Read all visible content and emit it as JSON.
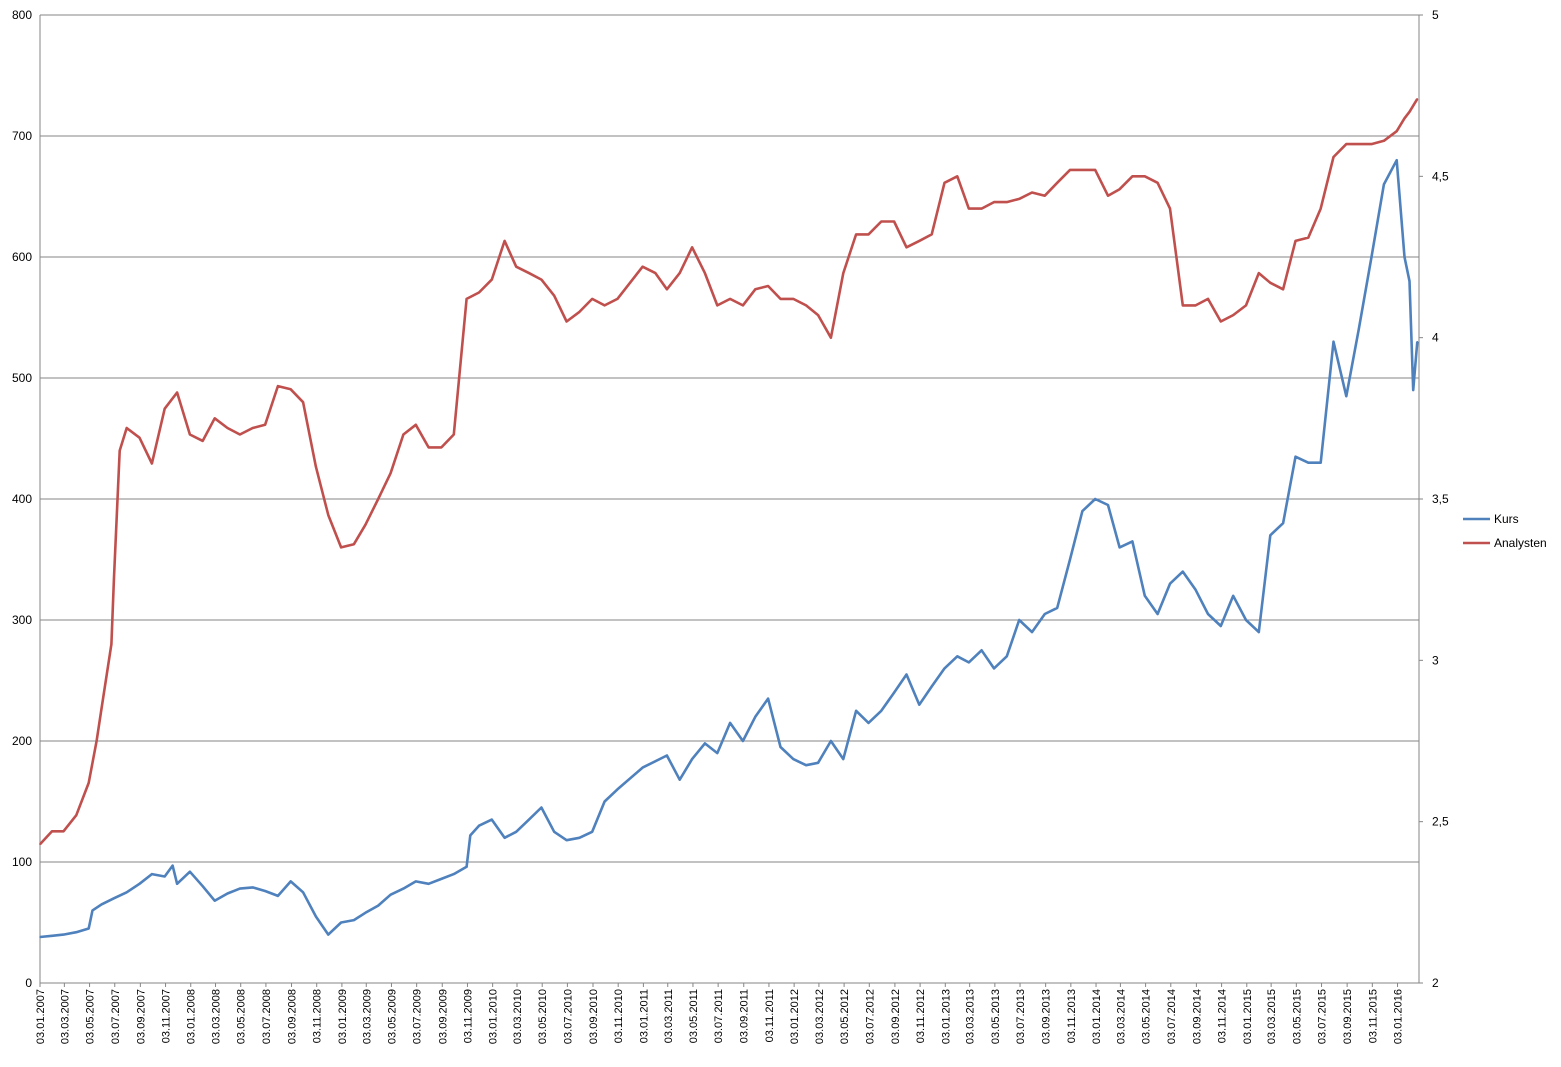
{
  "chart_data": {
    "type": "line",
    "title": "",
    "xlabel": "",
    "ylabel": "",
    "y2label": "",
    "grid": true,
    "legend_position": "right",
    "x_ticks": [
      "03.01.2007",
      "03.03.2007",
      "03.05.2007",
      "03.07.2007",
      "03.09.2007",
      "03.11.2007",
      "03.01.2008",
      "03.03.2008",
      "03.05.2008",
      "03.07.2008",
      "03.09.2008",
      "03.11.2008",
      "03.01.2009",
      "03.03.2009",
      "03.05.2009",
      "03.07.2009",
      "03.09.2009",
      "03.11.2009",
      "03.01.2010",
      "03.03.2010",
      "03.05.2010",
      "03.07.2010",
      "03.09.2010",
      "03.11.2010",
      "03.01.2011",
      "03.03.2011",
      "03.05.2011",
      "03.07.2011",
      "03.09.2011",
      "03.11.2011",
      "03.01.2012",
      "03.03.2012",
      "03.05.2012",
      "03.07.2012",
      "03.09.2012",
      "03.11.2012",
      "03.01.2013",
      "03.03.2013",
      "03.05.2013",
      "03.07.2013",
      "03.09.2013",
      "03.11.2013",
      "03.01.2014",
      "03.03.2014",
      "03.05.2014",
      "03.07.2014",
      "03.09.2014",
      "03.11.2014",
      "03.01.2015",
      "03.03.2015",
      "03.05.2015",
      "03.07.2015",
      "03.09.2015",
      "03.11.2015",
      "03.01.2016"
    ],
    "y_left": {
      "min": 0,
      "max": 800,
      "ticks": [
        "0",
        "100",
        "200",
        "300",
        "400",
        "500",
        "600",
        "700",
        "800"
      ]
    },
    "y_right": {
      "min": 2,
      "max": 5,
      "ticks": [
        "2",
        "2,5",
        "3",
        "3,5",
        "4",
        "4,5",
        "5"
      ]
    },
    "series": [
      {
        "name": "Kurs",
        "axis": "left",
        "color": "#4f81bd",
        "points": [
          [
            "2007-01-03",
            38
          ],
          [
            "2007-02-01",
            39
          ],
          [
            "2007-03-01",
            40
          ],
          [
            "2007-04-01",
            42
          ],
          [
            "2007-05-01",
            45
          ],
          [
            "2007-05-10",
            60
          ],
          [
            "2007-06-01",
            65
          ],
          [
            "2007-07-01",
            70
          ],
          [
            "2007-08-01",
            75
          ],
          [
            "2007-09-01",
            82
          ],
          [
            "2007-10-01",
            90
          ],
          [
            "2007-11-01",
            88
          ],
          [
            "2007-11-20",
            97
          ],
          [
            "2007-12-01",
            82
          ],
          [
            "2008-01-01",
            92
          ],
          [
            "2008-02-01",
            80
          ],
          [
            "2008-03-01",
            68
          ],
          [
            "2008-04-01",
            74
          ],
          [
            "2008-05-01",
            78
          ],
          [
            "2008-06-01",
            79
          ],
          [
            "2008-07-01",
            76
          ],
          [
            "2008-08-01",
            72
          ],
          [
            "2008-09-01",
            84
          ],
          [
            "2008-10-01",
            75
          ],
          [
            "2008-11-01",
            55
          ],
          [
            "2008-12-01",
            40
          ],
          [
            "2009-01-01",
            50
          ],
          [
            "2009-02-01",
            52
          ],
          [
            "2009-03-01",
            58
          ],
          [
            "2009-04-01",
            64
          ],
          [
            "2009-05-01",
            73
          ],
          [
            "2009-06-01",
            78
          ],
          [
            "2009-07-01",
            84
          ],
          [
            "2009-08-01",
            82
          ],
          [
            "2009-09-01",
            86
          ],
          [
            "2009-10-01",
            90
          ],
          [
            "2009-11-01",
            96
          ],
          [
            "2009-11-10",
            122
          ],
          [
            "2009-12-01",
            130
          ],
          [
            "2010-01-01",
            135
          ],
          [
            "2010-02-01",
            120
          ],
          [
            "2010-03-01",
            125
          ],
          [
            "2010-04-01",
            135
          ],
          [
            "2010-05-01",
            145
          ],
          [
            "2010-06-01",
            125
          ],
          [
            "2010-07-01",
            118
          ],
          [
            "2010-08-01",
            120
          ],
          [
            "2010-09-01",
            125
          ],
          [
            "2010-10-01",
            150
          ],
          [
            "2010-11-01",
            160
          ],
          [
            "2011-01-01",
            178
          ],
          [
            "2011-03-01",
            188
          ],
          [
            "2011-04-01",
            168
          ],
          [
            "2011-05-01",
            185
          ],
          [
            "2011-06-01",
            198
          ],
          [
            "2011-07-01",
            190
          ],
          [
            "2011-08-01",
            215
          ],
          [
            "2011-09-01",
            200
          ],
          [
            "2011-10-01",
            220
          ],
          [
            "2011-11-01",
            235
          ],
          [
            "2011-12-01",
            195
          ],
          [
            "2012-01-01",
            185
          ],
          [
            "2012-02-01",
            180
          ],
          [
            "2012-03-01",
            182
          ],
          [
            "2012-04-01",
            200
          ],
          [
            "2012-05-01",
            185
          ],
          [
            "2012-06-01",
            225
          ],
          [
            "2012-07-01",
            215
          ],
          [
            "2012-08-01",
            225
          ],
          [
            "2012-09-01",
            240
          ],
          [
            "2012-10-01",
            255
          ],
          [
            "2012-11-01",
            230
          ],
          [
            "2012-12-01",
            245
          ],
          [
            "2013-01-01",
            260
          ],
          [
            "2013-02-01",
            270
          ],
          [
            "2013-03-01",
            265
          ],
          [
            "2013-04-01",
            275
          ],
          [
            "2013-05-01",
            260
          ],
          [
            "2013-06-01",
            270
          ],
          [
            "2013-07-01",
            300
          ],
          [
            "2013-08-01",
            290
          ],
          [
            "2013-09-01",
            305
          ],
          [
            "2013-10-01",
            310
          ],
          [
            "2013-11-01",
            350
          ],
          [
            "2013-12-01",
            390
          ],
          [
            "2014-01-01",
            400
          ],
          [
            "2014-02-01",
            395
          ],
          [
            "2014-03-01",
            360
          ],
          [
            "2014-04-01",
            365
          ],
          [
            "2014-05-01",
            320
          ],
          [
            "2014-06-01",
            305
          ],
          [
            "2014-07-01",
            330
          ],
          [
            "2014-08-01",
            340
          ],
          [
            "2014-09-01",
            325
          ],
          [
            "2014-10-01",
            305
          ],
          [
            "2014-11-01",
            295
          ],
          [
            "2014-12-01",
            320
          ],
          [
            "2015-01-01",
            300
          ],
          [
            "2015-02-01",
            290
          ],
          [
            "2015-03-01",
            370
          ],
          [
            "2015-04-01",
            380
          ],
          [
            "2015-05-01",
            435
          ],
          [
            "2015-06-01",
            430
          ],
          [
            "2015-07-01",
            430
          ],
          [
            "2015-08-01",
            530
          ],
          [
            "2015-09-01",
            485
          ],
          [
            "2015-10-01",
            540
          ],
          [
            "2015-11-01",
            600
          ],
          [
            "2015-12-01",
            660
          ],
          [
            "2016-01-01",
            680
          ],
          [
            "2016-01-20",
            600
          ],
          [
            "2016-02-01",
            580
          ],
          [
            "2016-02-10",
            490
          ],
          [
            "2016-02-20",
            530
          ]
        ]
      },
      {
        "name": "Analysten",
        "axis": "right",
        "color": "#c0504d",
        "points": [
          [
            "2007-01-03",
            2.43
          ],
          [
            "2007-02-01",
            2.47
          ],
          [
            "2007-03-01",
            2.47
          ],
          [
            "2007-04-01",
            2.52
          ],
          [
            "2007-05-01",
            2.62
          ],
          [
            "2007-05-20",
            2.75
          ],
          [
            "2007-06-01",
            2.85
          ],
          [
            "2007-06-25",
            3.05
          ],
          [
            "2007-07-01",
            3.25
          ],
          [
            "2007-07-15",
            3.65
          ],
          [
            "2007-08-01",
            3.72
          ],
          [
            "2007-09-01",
            3.69
          ],
          [
            "2007-10-01",
            3.61
          ],
          [
            "2007-11-01",
            3.78
          ],
          [
            "2007-12-01",
            3.83
          ],
          [
            "2008-01-01",
            3.7
          ],
          [
            "2008-02-01",
            3.68
          ],
          [
            "2008-03-01",
            3.75
          ],
          [
            "2008-04-01",
            3.72
          ],
          [
            "2008-05-01",
            3.7
          ],
          [
            "2008-06-01",
            3.72
          ],
          [
            "2008-07-01",
            3.73
          ],
          [
            "2008-08-01",
            3.85
          ],
          [
            "2008-09-01",
            3.84
          ],
          [
            "2008-10-01",
            3.8
          ],
          [
            "2008-11-01",
            3.6
          ],
          [
            "2008-12-01",
            3.45
          ],
          [
            "2009-01-01",
            3.35
          ],
          [
            "2009-02-01",
            3.36
          ],
          [
            "2009-03-01",
            3.42
          ],
          [
            "2009-04-01",
            3.5
          ],
          [
            "2009-05-01",
            3.58
          ],
          [
            "2009-06-01",
            3.7
          ],
          [
            "2009-07-01",
            3.73
          ],
          [
            "2009-08-01",
            3.66
          ],
          [
            "2009-09-01",
            3.66
          ],
          [
            "2009-10-01",
            3.7
          ],
          [
            "2009-11-01",
            4.12
          ],
          [
            "2009-12-01",
            4.14
          ],
          [
            "2010-01-01",
            4.18
          ],
          [
            "2010-02-01",
            4.3
          ],
          [
            "2010-03-01",
            4.22
          ],
          [
            "2010-04-01",
            4.2
          ],
          [
            "2010-05-01",
            4.18
          ],
          [
            "2010-06-01",
            4.13
          ],
          [
            "2010-07-01",
            4.05
          ],
          [
            "2010-08-01",
            4.08
          ],
          [
            "2010-09-01",
            4.12
          ],
          [
            "2010-10-01",
            4.1
          ],
          [
            "2010-11-01",
            4.12
          ],
          [
            "2011-01-01",
            4.22
          ],
          [
            "2011-02-01",
            4.2
          ],
          [
            "2011-03-01",
            4.15
          ],
          [
            "2011-04-01",
            4.2
          ],
          [
            "2011-05-01",
            4.28
          ],
          [
            "2011-06-01",
            4.2
          ],
          [
            "2011-07-01",
            4.1
          ],
          [
            "2011-08-01",
            4.12
          ],
          [
            "2011-09-01",
            4.1
          ],
          [
            "2011-10-01",
            4.15
          ],
          [
            "2011-11-01",
            4.16
          ],
          [
            "2011-12-01",
            4.12
          ],
          [
            "2012-01-01",
            4.12
          ],
          [
            "2012-02-01",
            4.1
          ],
          [
            "2012-03-01",
            4.07
          ],
          [
            "2012-04-01",
            4.0
          ],
          [
            "2012-05-01",
            4.2
          ],
          [
            "2012-06-01",
            4.32
          ],
          [
            "2012-07-01",
            4.32
          ],
          [
            "2012-08-01",
            4.36
          ],
          [
            "2012-09-01",
            4.36
          ],
          [
            "2012-10-01",
            4.28
          ],
          [
            "2012-11-01",
            4.3
          ],
          [
            "2012-12-01",
            4.32
          ],
          [
            "2013-01-01",
            4.48
          ],
          [
            "2013-02-01",
            4.5
          ],
          [
            "2013-03-01",
            4.4
          ],
          [
            "2013-04-01",
            4.4
          ],
          [
            "2013-05-01",
            4.42
          ],
          [
            "2013-06-01",
            4.42
          ],
          [
            "2013-07-01",
            4.43
          ],
          [
            "2013-08-01",
            4.45
          ],
          [
            "2013-09-01",
            4.44
          ],
          [
            "2013-10-01",
            4.48
          ],
          [
            "2013-11-01",
            4.52
          ],
          [
            "2013-12-01",
            4.52
          ],
          [
            "2014-01-01",
            4.52
          ],
          [
            "2014-02-01",
            4.44
          ],
          [
            "2014-03-01",
            4.46
          ],
          [
            "2014-04-01",
            4.5
          ],
          [
            "2014-05-01",
            4.5
          ],
          [
            "2014-06-01",
            4.48
          ],
          [
            "2014-07-01",
            4.4
          ],
          [
            "2014-08-01",
            4.1
          ],
          [
            "2014-09-01",
            4.1
          ],
          [
            "2014-10-01",
            4.12
          ],
          [
            "2014-11-01",
            4.05
          ],
          [
            "2014-12-01",
            4.07
          ],
          [
            "2015-01-01",
            4.1
          ],
          [
            "2015-02-01",
            4.2
          ],
          [
            "2015-03-01",
            4.17
          ],
          [
            "2015-04-01",
            4.15
          ],
          [
            "2015-05-01",
            4.3
          ],
          [
            "2015-06-01",
            4.31
          ],
          [
            "2015-07-01",
            4.4
          ],
          [
            "2015-08-01",
            4.56
          ],
          [
            "2015-09-01",
            4.6
          ],
          [
            "2015-10-01",
            4.6
          ],
          [
            "2015-11-01",
            4.6
          ],
          [
            "2015-12-01",
            4.61
          ],
          [
            "2016-01-01",
            4.64
          ],
          [
            "2016-01-20",
            4.68
          ],
          [
            "2016-02-01",
            4.7
          ],
          [
            "2016-02-20",
            4.74
          ]
        ]
      }
    ]
  }
}
